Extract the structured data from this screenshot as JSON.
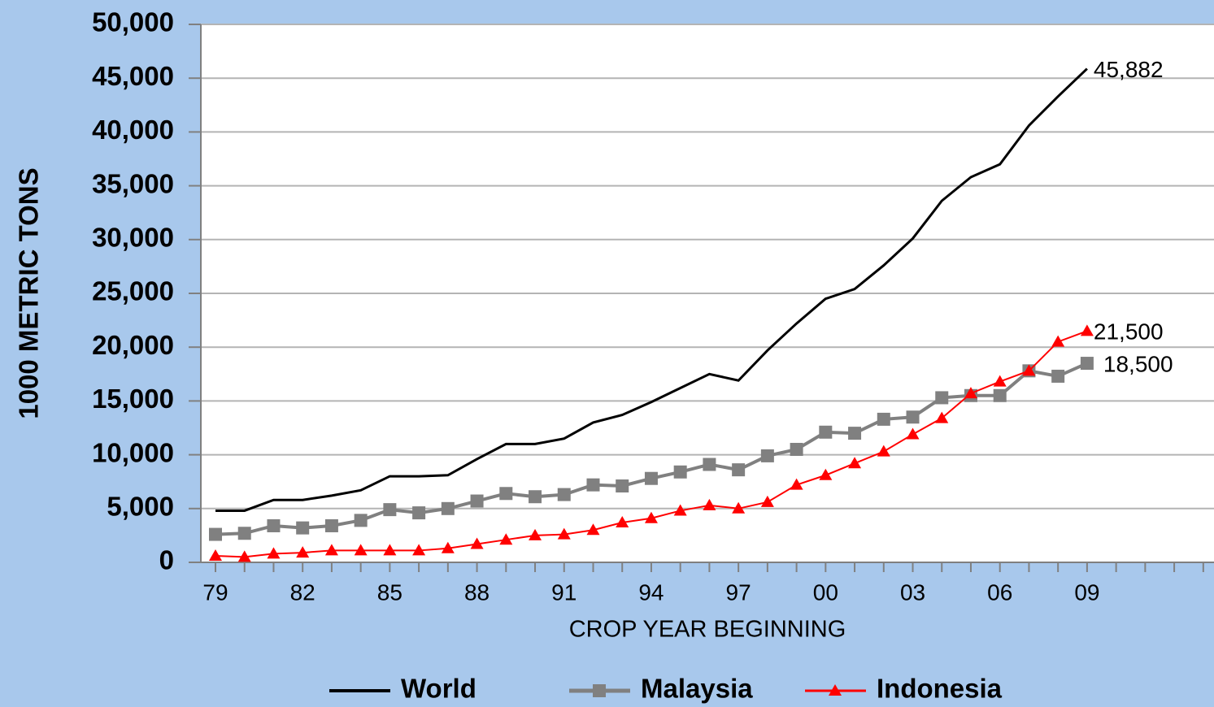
{
  "chart_data": {
    "type": "line",
    "y_label": "1000 METRIC TONS",
    "x_label": "CROP YEAR BEGINNING",
    "categories": [
      "79",
      null,
      null,
      "82",
      null,
      null,
      "85",
      null,
      null,
      "88",
      null,
      null,
      "91",
      null,
      null,
      "94",
      null,
      null,
      "97",
      null,
      null,
      "00",
      null,
      null,
      "03",
      null,
      null,
      "06",
      null,
      null,
      "09",
      null,
      null,
      null,
      null
    ],
    "series": [
      {
        "name": "World",
        "color": "#000000",
        "marker": "none",
        "values": [
          4800,
          4800,
          5800,
          5800,
          6200,
          6700,
          8000,
          8000,
          8100,
          9600,
          11000,
          11000,
          11500,
          13000,
          13700,
          14900,
          16200,
          17500,
          16900,
          19700,
          22200,
          24500,
          25400,
          27600,
          30100,
          33600,
          35800,
          37000,
          40600,
          43300,
          45882,
          null,
          null,
          null,
          null
        ],
        "value_labels": [
          null,
          null,
          null,
          null,
          null,
          null,
          null,
          null,
          null,
          null,
          null,
          null,
          null,
          null,
          null,
          null,
          null,
          null,
          null,
          null,
          null,
          null,
          null,
          null,
          null,
          null,
          null,
          null,
          null,
          null,
          "45,882",
          null,
          null,
          null,
          null
        ]
      },
      {
        "name": "Malaysia",
        "color": "#808080",
        "marker": "square",
        "values": [
          2600,
          2700,
          3400,
          3200,
          3400,
          3900,
          4900,
          4600,
          5000,
          5700,
          6400,
          6100,
          6300,
          7200,
          7100,
          7800,
          8400,
          9100,
          8600,
          9900,
          10500,
          12100,
          12000,
          13300,
          13500,
          15300,
          15500,
          15500,
          17800,
          17300,
          18500,
          null,
          null,
          null,
          null
        ],
        "value_labels": [
          null,
          null,
          null,
          null,
          null,
          null,
          null,
          null,
          null,
          null,
          null,
          null,
          null,
          null,
          null,
          null,
          null,
          null,
          null,
          null,
          null,
          null,
          null,
          null,
          null,
          null,
          null,
          null,
          null,
          null,
          "18,500",
          null,
          null,
          null,
          null
        ]
      },
      {
        "name": "Indonesia",
        "color": "#ff0000",
        "marker": "triangle",
        "values": [
          600,
          500,
          800,
          900,
          1100,
          1100,
          1100,
          1100,
          1300,
          1700,
          2100,
          2500,
          2600,
          3000,
          3700,
          4100,
          4800,
          5300,
          5000,
          5600,
          7200,
          8100,
          9200,
          10300,
          11900,
          13400,
          15700,
          16800,
          17800,
          20500,
          21500,
          null,
          null,
          null,
          null
        ],
        "value_labels": [
          null,
          null,
          null,
          null,
          null,
          null,
          null,
          null,
          null,
          null,
          null,
          null,
          null,
          null,
          null,
          null,
          null,
          null,
          null,
          null,
          null,
          null,
          null,
          null,
          null,
          null,
          null,
          null,
          null,
          null,
          "21,500",
          null,
          null,
          null,
          null
        ]
      }
    ],
    "ylim": [
      0,
      50000
    ],
    "yticks": [
      {
        "value": 0,
        "label": "0"
      },
      {
        "value": 5000,
        "label": "5,000"
      },
      {
        "value": 10000,
        "label": "10,000"
      },
      {
        "value": 15000,
        "label": "15,000"
      },
      {
        "value": 20000,
        "label": "20,000"
      },
      {
        "value": 25000,
        "label": "25,000"
      },
      {
        "value": 30000,
        "label": "30,000"
      },
      {
        "value": 35000,
        "label": "35,000"
      },
      {
        "value": 40000,
        "label": "40,000"
      },
      {
        "value": 45000,
        "label": "45,000"
      },
      {
        "value": 50000,
        "label": "50,000"
      }
    ],
    "grid": true,
    "legend": "bottom"
  }
}
